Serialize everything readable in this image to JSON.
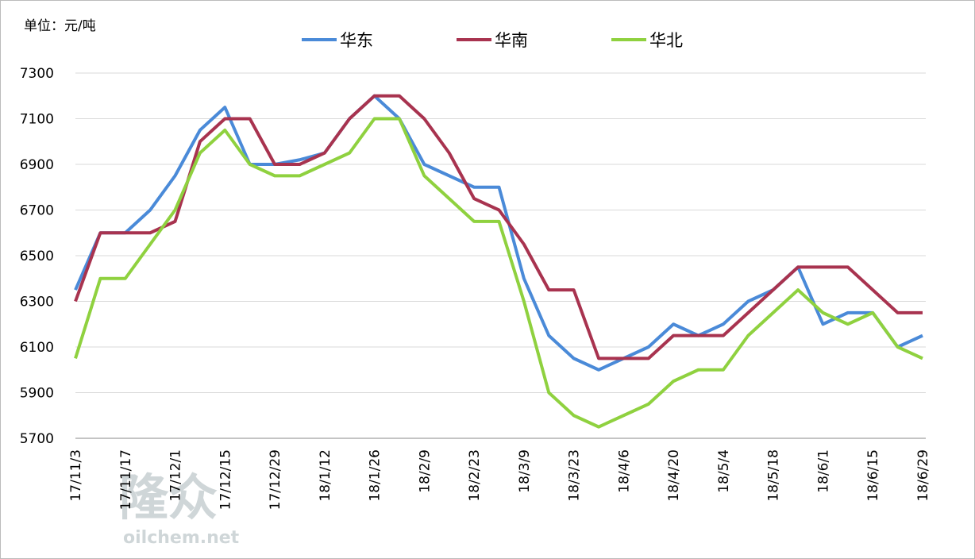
{
  "chart_data": {
    "type": "line",
    "unit_label": "单位：元/吨",
    "watermark": {
      "brand": "隆众",
      "site": "oilchem.net"
    },
    "categories": [
      "17/11/3",
      null,
      "17/11/17",
      null,
      "17/12/1",
      null,
      "17/12/15",
      null,
      "17/12/29",
      null,
      "18/1/12",
      null,
      "18/1/26",
      null,
      "18/2/9",
      null,
      "18/2/23",
      null,
      "18/3/9",
      null,
      "18/3/23",
      null,
      "18/4/6",
      null,
      "18/4/20",
      null,
      "18/5/4",
      null,
      "18/5/18",
      null,
      "18/6/1",
      null,
      "18/6/15",
      null,
      "18/6/29"
    ],
    "series": [
      {
        "name": "华东",
        "color": "#4a8ad8",
        "values": [
          6350,
          6600,
          6600,
          6700,
          6850,
          7050,
          7150,
          6900,
          6900,
          6920,
          6950,
          7100,
          7200,
          7100,
          6900,
          6850,
          6800,
          6800,
          6400,
          6150,
          6050,
          6000,
          6050,
          6100,
          6200,
          6150,
          6200,
          6300,
          6350,
          6450,
          6200,
          6250,
          6250,
          6100,
          6150
        ]
      },
      {
        "name": "华南",
        "color": "#a8334f",
        "values": [
          6300,
          6600,
          6600,
          6600,
          6650,
          7000,
          7100,
          7100,
          6900,
          6900,
          6950,
          7100,
          7200,
          7200,
          7100,
          6950,
          6750,
          6700,
          6550,
          6350,
          6350,
          6050,
          6050,
          6050,
          6150,
          6150,
          6150,
          6250,
          6350,
          6450,
          6450,
          6450,
          6350,
          6250,
          6250
        ]
      },
      {
        "name": "华北",
        "color": "#8fd13f",
        "values": [
          6050,
          6400,
          6400,
          6550,
          6700,
          6950,
          7050,
          6900,
          6850,
          6850,
          6900,
          6950,
          7100,
          7100,
          6850,
          6750,
          6650,
          6650,
          6300,
          5900,
          5800,
          5750,
          5800,
          5850,
          5950,
          6000,
          6000,
          6150,
          6250,
          6350,
          6250,
          6200,
          6250,
          6100,
          6050
        ]
      }
    ],
    "ylim": [
      5700,
      7300
    ],
    "yticks": [
      5700,
      5900,
      6100,
      6300,
      6500,
      6700,
      6900,
      7100,
      7300
    ],
    "grid": true,
    "legend": "top"
  }
}
